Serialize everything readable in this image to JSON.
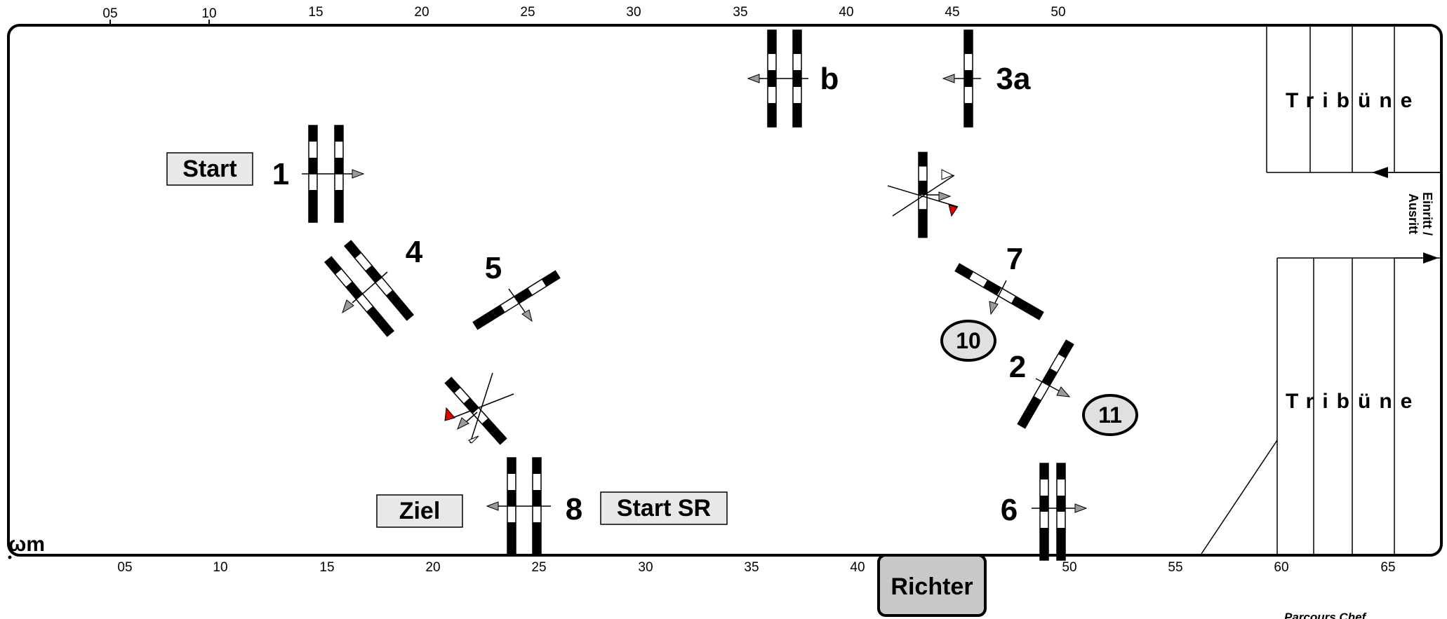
{
  "top_ruler": [
    "05",
    "10",
    "15",
    "20",
    "25",
    "30",
    "35",
    "40",
    "45",
    "50"
  ],
  "bottom_ruler": [
    "05",
    "10",
    "15",
    "20",
    "25",
    "30",
    "35",
    "40",
    "45",
    "50",
    "55",
    "60",
    "65"
  ],
  "labels": {
    "start": "Start",
    "ziel": "Ziel",
    "start_sr": "Start SR",
    "richter": "Richter",
    "tribune_top": "Tribüne",
    "tribune_bottom": "Tribüne",
    "entry_line1": "Einritt /",
    "entry_line2": "Ausritt",
    "credit": "Parcours Chef",
    "scale": "ωm"
  },
  "obstacles": [
    {
      "id": "1",
      "label": "1"
    },
    {
      "id": "b",
      "label": "b"
    },
    {
      "id": "3a",
      "label": "3a"
    },
    {
      "id": "4",
      "label": "4"
    },
    {
      "id": "5",
      "label": "5"
    },
    {
      "id": "7",
      "label": "7"
    },
    {
      "id": "2",
      "label": "2"
    },
    {
      "id": "8",
      "label": "8"
    },
    {
      "id": "6",
      "label": "6"
    }
  ],
  "circles": [
    "10",
    "11"
  ],
  "colors": {
    "arena_border": "#000000",
    "box_fill": "#e8e8e8",
    "richter_fill": "#c8c8c8",
    "arrow_fill": "#9a9a9a",
    "flag_red": "#dd0000"
  }
}
